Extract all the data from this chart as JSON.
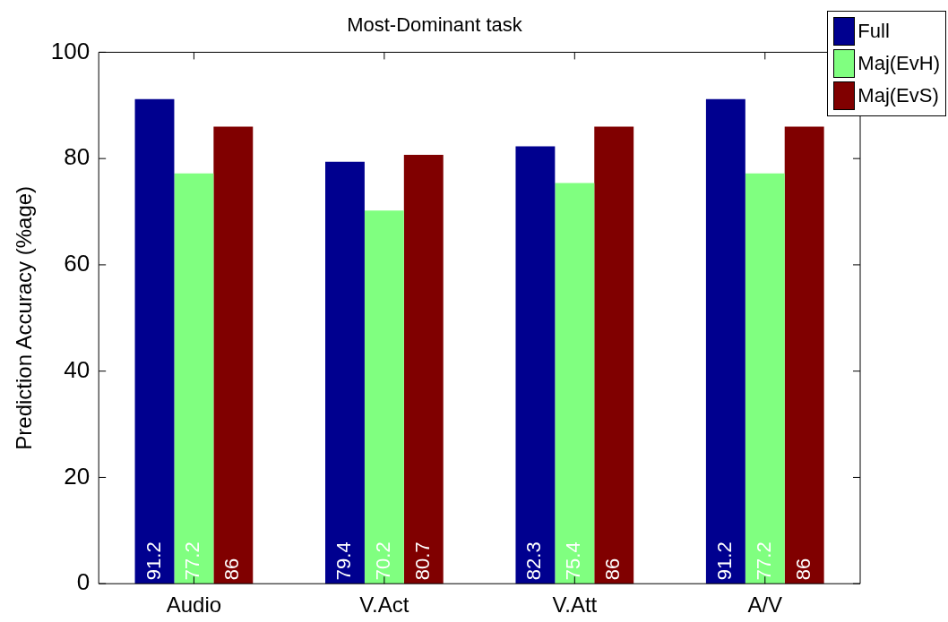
{
  "chart_data": {
    "type": "bar",
    "title": "Most-Dominant task",
    "ylabel": "Prediction Accuracy (%age)",
    "categories": [
      "Audio",
      "V.Act",
      "V.Att",
      "A/V"
    ],
    "series": [
      {
        "name": "Full",
        "color": "#00008f",
        "values": [
          91.2,
          79.4,
          82.3,
          91.2
        ]
      },
      {
        "name": "Maj(EvH)",
        "color": "#80ff80",
        "values": [
          77.2,
          70.2,
          75.4,
          77.2
        ]
      },
      {
        "name": "Maj(EvS)",
        "color": "#800000",
        "values": [
          86,
          80.7,
          86,
          86
        ]
      }
    ],
    "ylim": [
      0,
      100
    ],
    "yticks": [
      0,
      20,
      40,
      60,
      80,
      100
    ],
    "grid": false,
    "legend": "top right",
    "data_labels": true
  }
}
